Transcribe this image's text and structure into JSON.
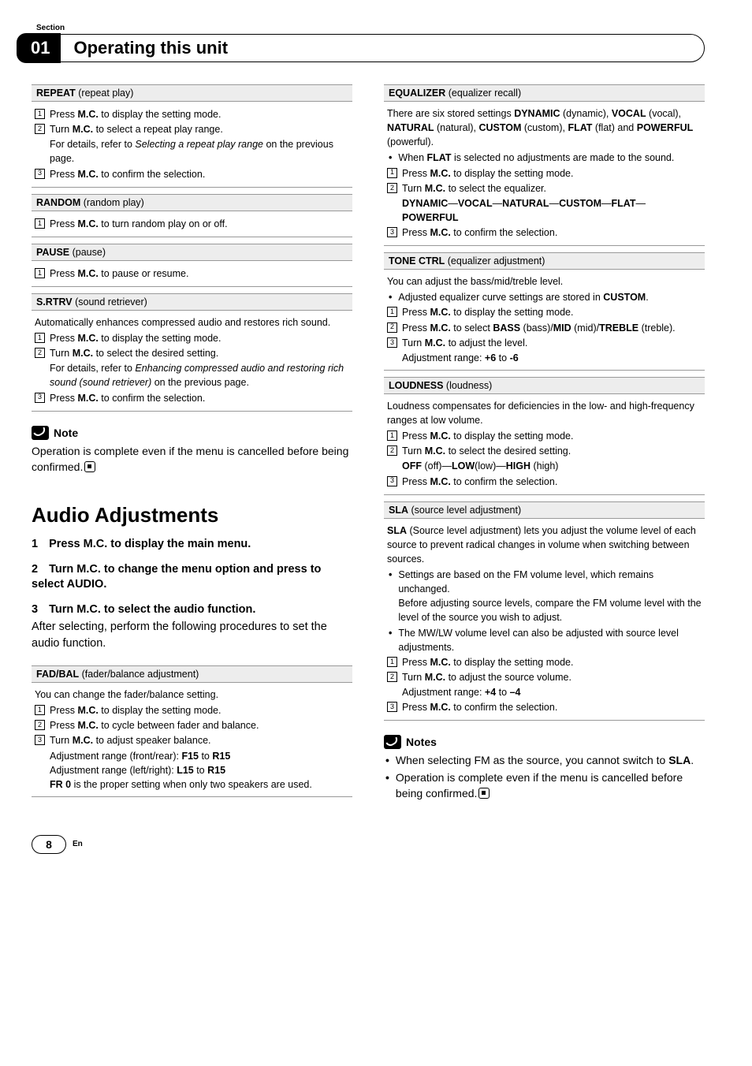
{
  "header": {
    "section_label": "Section",
    "chapter_number": "01",
    "title": "Operating this unit"
  },
  "left": {
    "repeat": {
      "title_bold": "REPEAT",
      "title_rest": " (repeat play)",
      "s1": "Press <b>M.C.</b> to display the setting mode.",
      "s2": "Turn <b>M.C.</b> to select a repeat play range.",
      "s2_detail": "For details, refer to <em>Selecting a repeat play range</em> on the previous page.",
      "s3": "Press <b>M.C.</b> to confirm the selection."
    },
    "random": {
      "title_bold": "RANDOM",
      "title_rest": " (random play)",
      "s1": "Press <b>M.C.</b> to turn random play on or off."
    },
    "pause": {
      "title_bold": "PAUSE",
      "title_rest": " (pause)",
      "s1": "Press <b>M.C.</b> to pause or resume."
    },
    "srtrv": {
      "title_bold": "S.RTRV",
      "title_rest": " (sound retriever)",
      "intro": "Automatically enhances compressed audio and restores rich sound.",
      "s1": "Press <b>M.C.</b> to display the setting mode.",
      "s2": "Turn <b>M.C.</b> to select the desired setting.",
      "s2_detail": "For details, refer to <em>Enhancing compressed audio and restoring rich sound (sound retriever)</em> on the previous page.",
      "s3": "Press <b>M.C.</b> to confirm the selection."
    },
    "note": {
      "label": "Note",
      "text": "Operation is complete even if the menu is cancelled before being confirmed."
    },
    "audio_h1": "Audio Adjustments",
    "proc1": "Press M.C. to display the main menu.",
    "proc2": "Turn M.C. to change the menu option and press to select AUDIO.",
    "proc3": "Turn M.C. to select the audio function.",
    "proc3_desc": "After selecting, perform the following procedures to set the audio function.",
    "fadbal": {
      "title_bold": "FAD/BAL",
      "title_rest": " (fader/balance adjustment)",
      "intro": "You can change the fader/balance setting.",
      "s1": "Press <b>M.C.</b> to display the setting mode.",
      "s2": "Press <b>M.C.</b> to cycle between fader and balance.",
      "s3": "Turn <b>M.C.</b> to adjust speaker balance.",
      "s3_a": "Adjustment range (front/rear): <b>F15</b> to <b>R15</b>",
      "s3_b": "Adjustment range (left/right):  <b>L15</b> to <b>R15</b>",
      "s3_c": "<b>FR 0</b> is the proper setting when only two speakers are used."
    }
  },
  "right": {
    "eq": {
      "title_bold": "EQUALIZER",
      "title_rest": " (equalizer recall)",
      "intro": "There are six stored settings <b>DYNAMIC</b> (dynamic), <b>VOCAL</b> (vocal), <b>NATURAL</b> (natural), <b>CUSTOM</b> (custom), <b>FLAT</b> (flat) and <b>POWERFUL</b> (powerful).",
      "b1": "When <b>FLAT</b> is selected no adjustments are made to the sound.",
      "s1": "Press <b>M.C.</b> to display the setting mode.",
      "s2": "Turn <b>M.C.</b> to select the equalizer.",
      "s2_detail": "<b>DYNAMIC</b>—<b>VOCAL</b>—<b>NATURAL</b>—<b>CUSTOM</b>—<b>FLAT</b>—<b>POWERFUL</b>",
      "s3": "Press <b>M.C.</b> to confirm the selection."
    },
    "tone": {
      "title_bold": "TONE CTRL",
      "title_rest": " (equalizer adjustment)",
      "intro": "You can adjust the bass/mid/treble level.",
      "b1": "Adjusted equalizer curve settings are stored in <b>CUSTOM</b>.",
      "s1": "Press <b>M.C.</b> to display the setting mode.",
      "s2": "Press <b>M.C.</b> to select <b>BASS</b> (bass)/<b>MID</b> (mid)/<b>TREBLE</b> (treble).",
      "s3": "Turn <b>M.C.</b> to adjust the level.",
      "s3_detail": "Adjustment range: <b>+6</b> to <b>-6</b>"
    },
    "loud": {
      "title_bold": "LOUDNESS",
      "title_rest": " (loudness)",
      "intro": "Loudness compensates for deficiencies in the low- and high-frequency ranges at low volume.",
      "s1": "Press <b>M.C.</b> to display the setting mode.",
      "s2": "Turn <b>M.C.</b> to select the desired setting.",
      "s2_detail": "<b>OFF</b> (off)—<b>LOW</b>(low)—<b>HIGH</b> (high)",
      "s3": "Press <b>M.C.</b> to confirm the selection."
    },
    "sla": {
      "title_bold": "SLA",
      "title_rest": " (source level adjustment)",
      "intro": "<b>SLA</b> (Source level adjustment) lets you adjust the volume level of each source to prevent radical changes in volume when switching between sources.",
      "b1": "Settings are based on the FM volume level, which remains unchanged.",
      "b1_detail": "Before adjusting source levels, compare the FM volume level with the level of the source you wish to adjust.",
      "b2": "The MW/LW volume level can also be adjusted with source level adjustments.",
      "s1": "Press <b>M.C.</b> to display the setting mode.",
      "s2": "Turn <b>M.C.</b> to adjust the source volume.",
      "s2_detail": "Adjustment range: <b>+4</b> to <b>–4</b>",
      "s3": "Press <b>M.C.</b> to confirm the selection."
    },
    "notes": {
      "label": "Notes",
      "n1": "When selecting FM as the source, you cannot switch to <b>SLA</b>.",
      "n2": "Operation is complete even if the menu is cancelled before being confirmed."
    }
  },
  "footer": {
    "page": "8",
    "lang": "En"
  }
}
